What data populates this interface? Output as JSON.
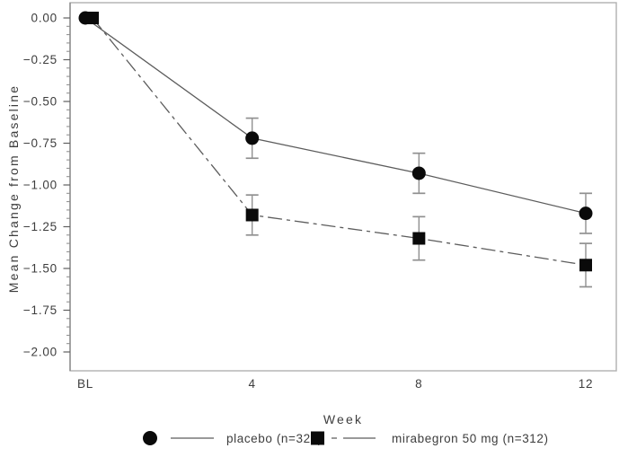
{
  "chart_data": {
    "type": "line",
    "title": "",
    "xlabel": "Week",
    "ylabel": "Mean Change from Baseline",
    "categories": [
      "BL",
      "4",
      "8",
      "12"
    ],
    "ylim": [
      -2.0,
      0.0
    ],
    "y_tick_step": 0.25,
    "y_minor_tick_step": 0.05,
    "y_tick_labels": [
      "0.00",
      "−0.25",
      "−0.50",
      "−0.75",
      "−1.00",
      "−1.25",
      "−1.50",
      "−1.75",
      "−2.00"
    ],
    "grid": false,
    "legend_position": "bottom",
    "background_color": "#ffffff",
    "frame_color": "#b0b0b0",
    "line_color": "#5c5c5c",
    "error_bar_color": "#909090",
    "series": [
      {
        "name": "placebo (n=325)",
        "marker": "circle",
        "line_style": "solid",
        "color": "#0a0a0a",
        "values": [
          0.0,
          -0.72,
          -0.93,
          -1.17
        ],
        "error_bars": [
          0.0,
          0.12,
          0.12,
          0.12
        ]
      },
      {
        "name": "mirabegron 50 mg (n=312)",
        "marker": "square",
        "line_style": "dash-dot",
        "color": "#0a0a0a",
        "values": [
          0.0,
          -1.18,
          -1.32,
          -1.48
        ],
        "error_bars": [
          0.0,
          0.12,
          0.13,
          0.13
        ]
      }
    ]
  }
}
